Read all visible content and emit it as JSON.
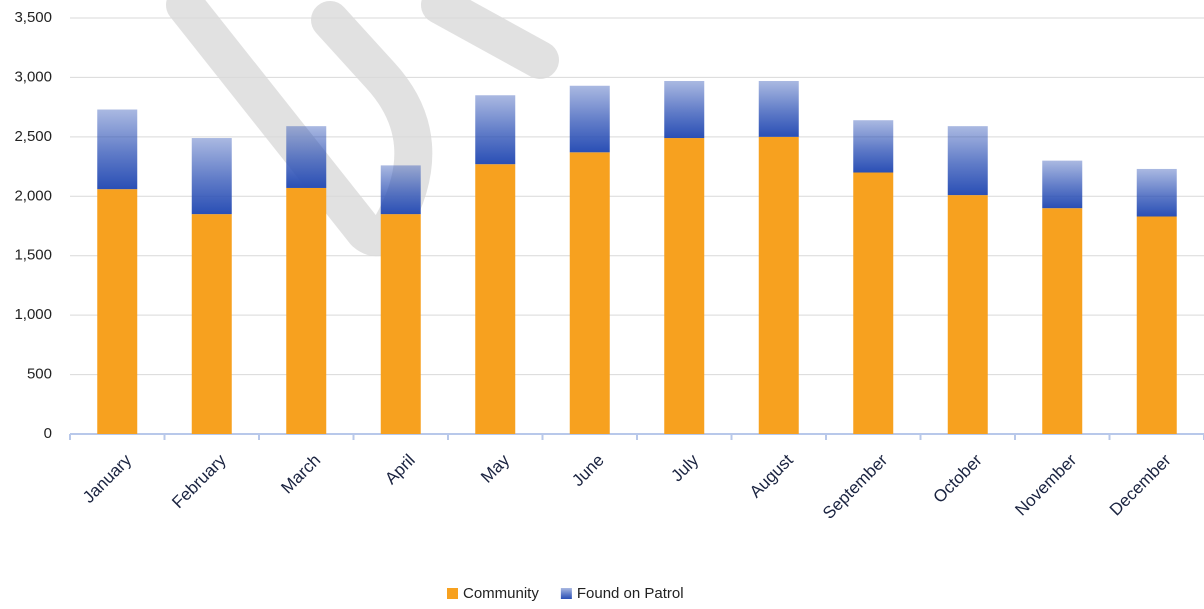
{
  "chart_data": {
    "type": "stacked_bar",
    "categories": [
      "January",
      "February",
      "March",
      "April",
      "May",
      "June",
      "July",
      "August",
      "September",
      "October",
      "November",
      "December"
    ],
    "series": [
      {
        "name": "Community",
        "color": "#f7a11f",
        "values": [
          2060,
          1850,
          2070,
          1850,
          2270,
          2370,
          2490,
          2500,
          2200,
          2010,
          1900,
          1830
        ]
      },
      {
        "name": "Found on Patrol",
        "color": "#2a4fb5",
        "values": [
          670,
          640,
          520,
          410,
          580,
          560,
          480,
          470,
          440,
          580,
          400,
          400
        ]
      }
    ],
    "ylim": [
      0,
      3500
    ],
    "yticks": [
      0,
      500,
      {
        "value": 1000,
        "label": "1,000"
      },
      {
        "value": 1500,
        "label": "1,500"
      },
      {
        "value": 2000,
        "label": "2,000"
      },
      {
        "value": 2500,
        "label": "2,500"
      },
      {
        "value": 3000,
        "label": "3,000"
      },
      {
        "value": 3500,
        "label": "3,500"
      }
    ],
    "grid": true,
    "legend": "bottom"
  }
}
